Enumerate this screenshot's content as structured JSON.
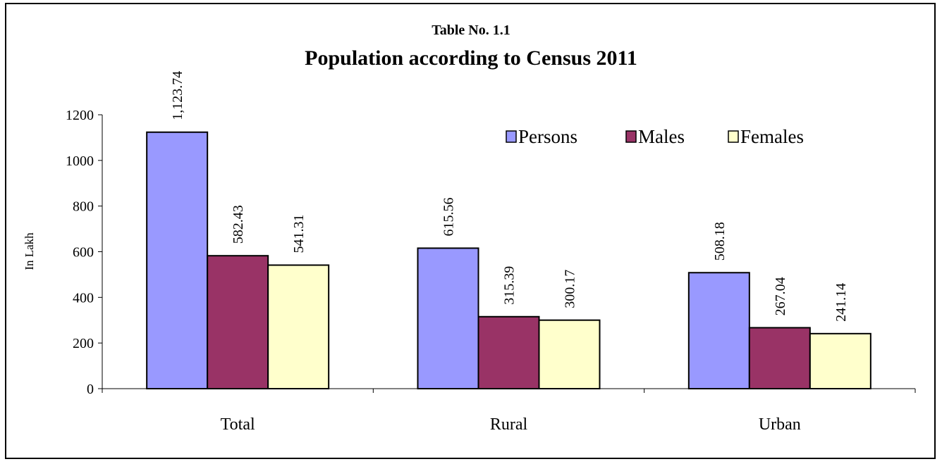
{
  "chart_data": {
    "type": "bar",
    "title": "Table No. 1.1",
    "subtitle": "Population according to Census 2011",
    "xlabel": "",
    "ylabel": "In Lakh",
    "categories": [
      "Total",
      "Rural",
      "Urban"
    ],
    "series": [
      {
        "name": "Persons",
        "color": "#9999ff",
        "values": [
          1123.74,
          615.56,
          508.18
        ],
        "labels": [
          "1,123.74",
          "615.56",
          "508.18"
        ]
      },
      {
        "name": "Males",
        "color": "#993366",
        "values": [
          582.43,
          315.39,
          267.04
        ],
        "labels": [
          "582.43",
          "315.39",
          "267.04"
        ]
      },
      {
        "name": "Females",
        "color": "#ffffcc",
        "values": [
          541.31,
          300.17,
          241.14
        ],
        "labels": [
          "541.31",
          "300.17",
          "241.14"
        ]
      }
    ],
    "ylim": [
      0,
      1200
    ],
    "yticks": [
      "0",
      "200",
      "400",
      "600",
      "800",
      "1000",
      "1200"
    ],
    "grid": false,
    "legend_position": "top-right"
  }
}
